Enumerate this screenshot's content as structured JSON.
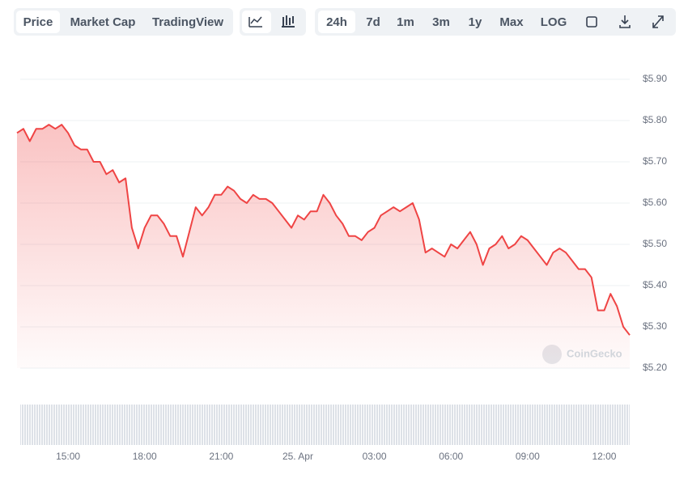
{
  "toolbar": {
    "tabs": [
      "Price",
      "Market Cap",
      "TradingView"
    ],
    "ranges": [
      "24h",
      "7d",
      "1m",
      "3m",
      "1y",
      "Max",
      "LOG"
    ]
  },
  "watermark": "CoinGecko",
  "chart_data": {
    "type": "area",
    "color": "#ef4444",
    "categories": [
      null,
      null,
      null,
      null,
      null,
      null,
      null,
      null,
      "15:00",
      null,
      null,
      null,
      null,
      null,
      null,
      null,
      null,
      null,
      null,
      null,
      "18:00",
      null,
      null,
      null,
      null,
      null,
      null,
      null,
      null,
      null,
      null,
      null,
      "21:00",
      null,
      null,
      null,
      null,
      null,
      null,
      null,
      null,
      null,
      null,
      null,
      "25. Apr",
      null,
      null,
      null,
      null,
      null,
      null,
      null,
      null,
      null,
      null,
      null,
      "03:00",
      null,
      null,
      null,
      null,
      null,
      null,
      null,
      null,
      null,
      null,
      null,
      "06:00",
      null,
      null,
      null,
      null,
      null,
      null,
      null,
      null,
      null,
      null,
      null,
      "09:00",
      null,
      null,
      null,
      null,
      null,
      null,
      null,
      null,
      null,
      null,
      null,
      "12:00",
      null,
      null,
      null,
      null
    ],
    "values": [
      5.77,
      5.78,
      5.75,
      5.78,
      5.78,
      5.79,
      5.78,
      5.79,
      5.77,
      5.74,
      5.73,
      5.73,
      5.7,
      5.7,
      5.67,
      5.68,
      5.65,
      5.66,
      5.54,
      5.49,
      5.54,
      5.57,
      5.57,
      5.55,
      5.52,
      5.52,
      5.47,
      5.53,
      5.59,
      5.57,
      5.59,
      5.62,
      5.62,
      5.64,
      5.63,
      5.61,
      5.6,
      5.62,
      5.61,
      5.61,
      5.6,
      5.58,
      5.56,
      5.54,
      5.57,
      5.56,
      5.58,
      5.58,
      5.62,
      5.6,
      5.57,
      5.55,
      5.52,
      5.52,
      5.51,
      5.53,
      5.54,
      5.57,
      5.58,
      5.59,
      5.58,
      5.59,
      5.6,
      5.56,
      5.48,
      5.49,
      5.48,
      5.47,
      5.5,
      5.49,
      5.51,
      5.53,
      5.5,
      5.45,
      5.49,
      5.5,
      5.52,
      5.49,
      5.5,
      5.52,
      5.51,
      5.49,
      5.47,
      5.45,
      5.48,
      5.49,
      5.48,
      5.46,
      5.44,
      5.44,
      5.42,
      5.34,
      5.34,
      5.38,
      5.35,
      5.3,
      5.28
    ],
    "ylim": [
      5.2,
      5.9
    ],
    "yticks": [
      {
        "value": 5.2,
        "label": "$5.20"
      },
      {
        "value": 5.3,
        "label": "$5.30"
      },
      {
        "value": 5.4,
        "label": "$5.40"
      },
      {
        "value": 5.5,
        "label": "$5.50"
      },
      {
        "value": 5.6,
        "label": "$5.60"
      },
      {
        "value": 5.7,
        "label": "$5.70"
      },
      {
        "value": 5.8,
        "label": "$5.80"
      },
      {
        "value": 5.9,
        "label": "$5.90"
      }
    ],
    "grid": true
  }
}
